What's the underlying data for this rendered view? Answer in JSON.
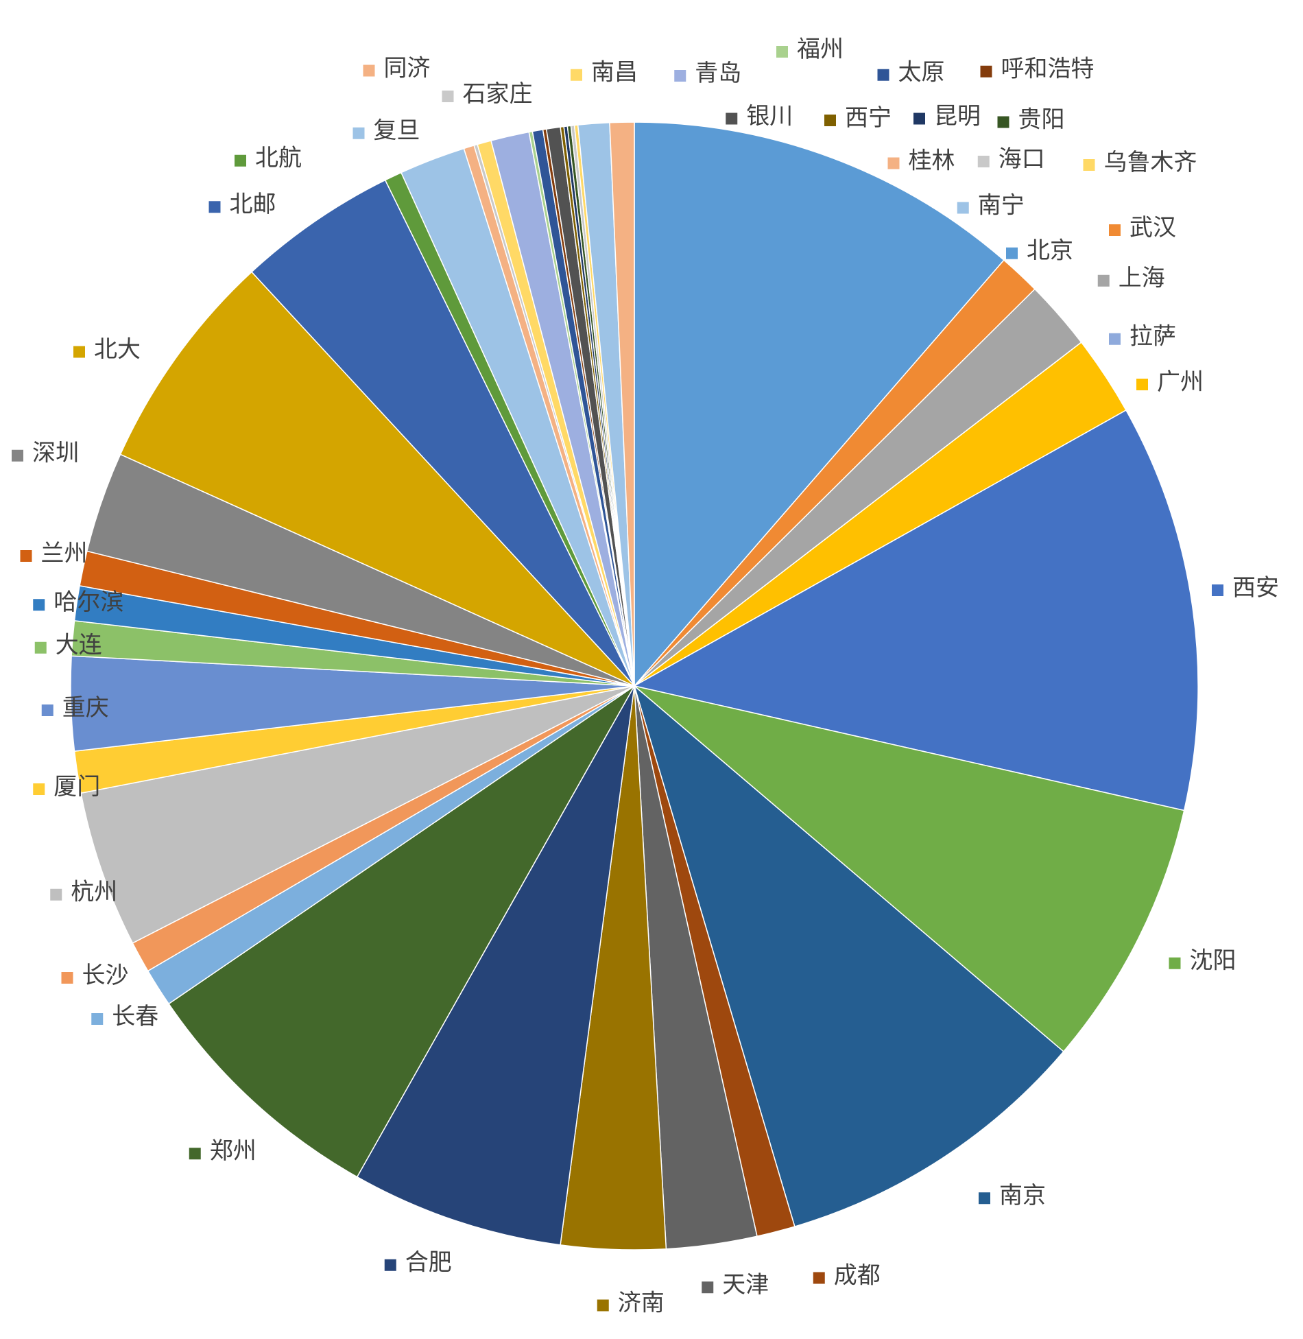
{
  "chart_data": {
    "type": "pie",
    "categories": [
      "北京",
      "武汉",
      "上海",
      "拉萨",
      "广州",
      "西安",
      "沈阳",
      "南京",
      "成都",
      "天津",
      "济南",
      "合肥",
      "郑州",
      "长春",
      "长沙",
      "杭州",
      "厦门",
      "重庆",
      "大连",
      "哈尔滨",
      "兰州",
      "深圳",
      "北大",
      "北邮",
      "北航",
      "复旦",
      "同济",
      "石家庄",
      "南昌",
      "青岛",
      "福州",
      "太原",
      "呼和浩特",
      "银川",
      "西宁",
      "昆明",
      "贵阳",
      "海口",
      "乌鲁木齐",
      "南宁",
      "桂林"
    ],
    "values": [
      11.4,
      1.2,
      2.0,
      0,
      2.3,
      11.7,
      7.7,
      9.2,
      1.1,
      2.6,
      3.0,
      6.1,
      7.3,
      1.1,
      0.9,
      4.5,
      1.2,
      2.7,
      1.0,
      1.0,
      1.0,
      2.9,
      6.4,
      4.6,
      0.5,
      1.9,
      0.3,
      0.1,
      0.4,
      1.1,
      0.1,
      0.3,
      0.1,
      0.4,
      0.1,
      0.1,
      0.1,
      0.1,
      0.1,
      0.9,
      0.7
    ],
    "colors": [
      "#5b9bd5",
      "#f08a33",
      "#a5a5a5",
      "#8faadc",
      "#ffc000",
      "#4472c4",
      "#70ad47",
      "#255e91",
      "#9e480e",
      "#636363",
      "#997300",
      "#264478",
      "#43682b",
      "#7cafdd",
      "#f1975a",
      "#bfbfbf",
      "#ffcd33",
      "#698ed0",
      "#8cc168",
      "#327dc2",
      "#d26012",
      "#848484",
      "#d4a500",
      "#3a64ad",
      "#5f9a3b",
      "#9dc3e6",
      "#f4b183",
      "#c9c9c9",
      "#ffd966",
      "#9dafe0",
      "#a9d18e",
      "#2f5597",
      "#843c0c",
      "#525252",
      "#7f6000",
      "#203864",
      "#375623",
      "#c9c9c9",
      "#ffd966",
      "#9dc3e6",
      "#f4b183"
    ]
  }
}
